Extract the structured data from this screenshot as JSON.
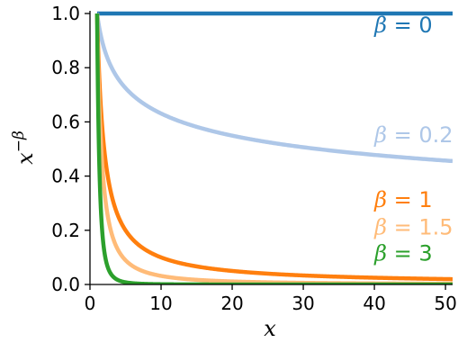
{
  "chart_data": {
    "type": "line",
    "title": "",
    "xlabel": "x",
    "ylabel_base": "x",
    "ylabel_exp": "−β",
    "xlim": [
      0,
      51
    ],
    "ylim": [
      0,
      1.0
    ],
    "xticks": [
      0,
      10,
      20,
      30,
      40,
      50
    ],
    "xtick_labels": [
      "0",
      "10",
      "20",
      "30",
      "40",
      "50"
    ],
    "yticks": [
      0.0,
      0.2,
      0.4,
      0.6,
      0.8,
      1.0
    ],
    "ytick_labels": [
      "0.0",
      "0.2",
      "0.4",
      "0.6",
      "0.8",
      "1.0"
    ],
    "grid": false,
    "legend": "none",
    "x_range": [
      1,
      51
    ],
    "series": [
      {
        "symbol": "β",
        "value_text": " = 0",
        "beta": 0,
        "color": "#1f77b4",
        "label_x": 40,
        "label_y": 0.93
      },
      {
        "symbol": "β",
        "value_text": " = 0.2",
        "beta": 0.2,
        "color": "#aec7e8",
        "label_x": 40,
        "label_y": 0.525
      },
      {
        "symbol": "β",
        "value_text": " = 1",
        "beta": 1,
        "color": "#ff7f0e",
        "label_x": 40,
        "label_y": 0.285
      },
      {
        "symbol": "β",
        "value_text": " = 1.5",
        "beta": 1.5,
        "color": "#ffbb78",
        "label_x": 40,
        "label_y": 0.185
      },
      {
        "symbol": "β",
        "value_text": " = 3",
        "beta": 3,
        "color": "#2ca02c",
        "label_x": 40,
        "label_y": 0.088
      }
    ]
  }
}
